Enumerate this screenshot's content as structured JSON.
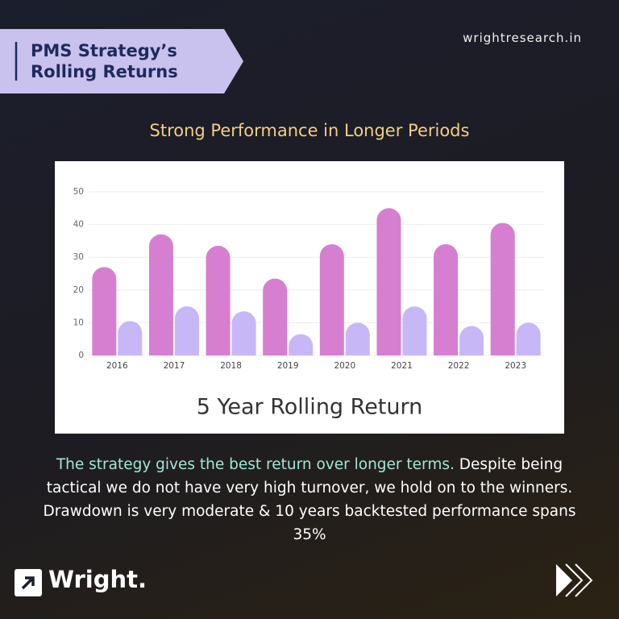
{
  "header": {
    "title_line1": "PMS Strategy’s",
    "title_line2": "Rolling Returns",
    "site": "wrightresearch.in"
  },
  "subtitle": "Strong Performance in Longer Periods",
  "chart_data": {
    "type": "bar",
    "title": "5 Year Rolling Return",
    "categories": [
      "2016",
      "2017",
      "2018",
      "2019",
      "2020",
      "2021",
      "2022",
      "2023"
    ],
    "series": [
      {
        "color": "#d67fd0",
        "values": [
          27,
          37,
          33.5,
          23.5,
          34,
          45,
          34,
          40.5
        ]
      },
      {
        "color": "#c7b7f6",
        "values": [
          10.5,
          15,
          13.5,
          6.5,
          10,
          15,
          9,
          10
        ]
      }
    ],
    "ylim": [
      0,
      50
    ],
    "yticks": [
      0,
      10,
      20,
      30,
      40,
      50
    ],
    "grid": true
  },
  "body": {
    "highlight": "The strategy gives the best return over longer terms.",
    "text": "Despite being tactical we do not have very high turnover, we hold on to the winners. Drawdown is very moderate & 10 years backtested performance spans 35%"
  },
  "footer": {
    "brand": "Wright."
  }
}
